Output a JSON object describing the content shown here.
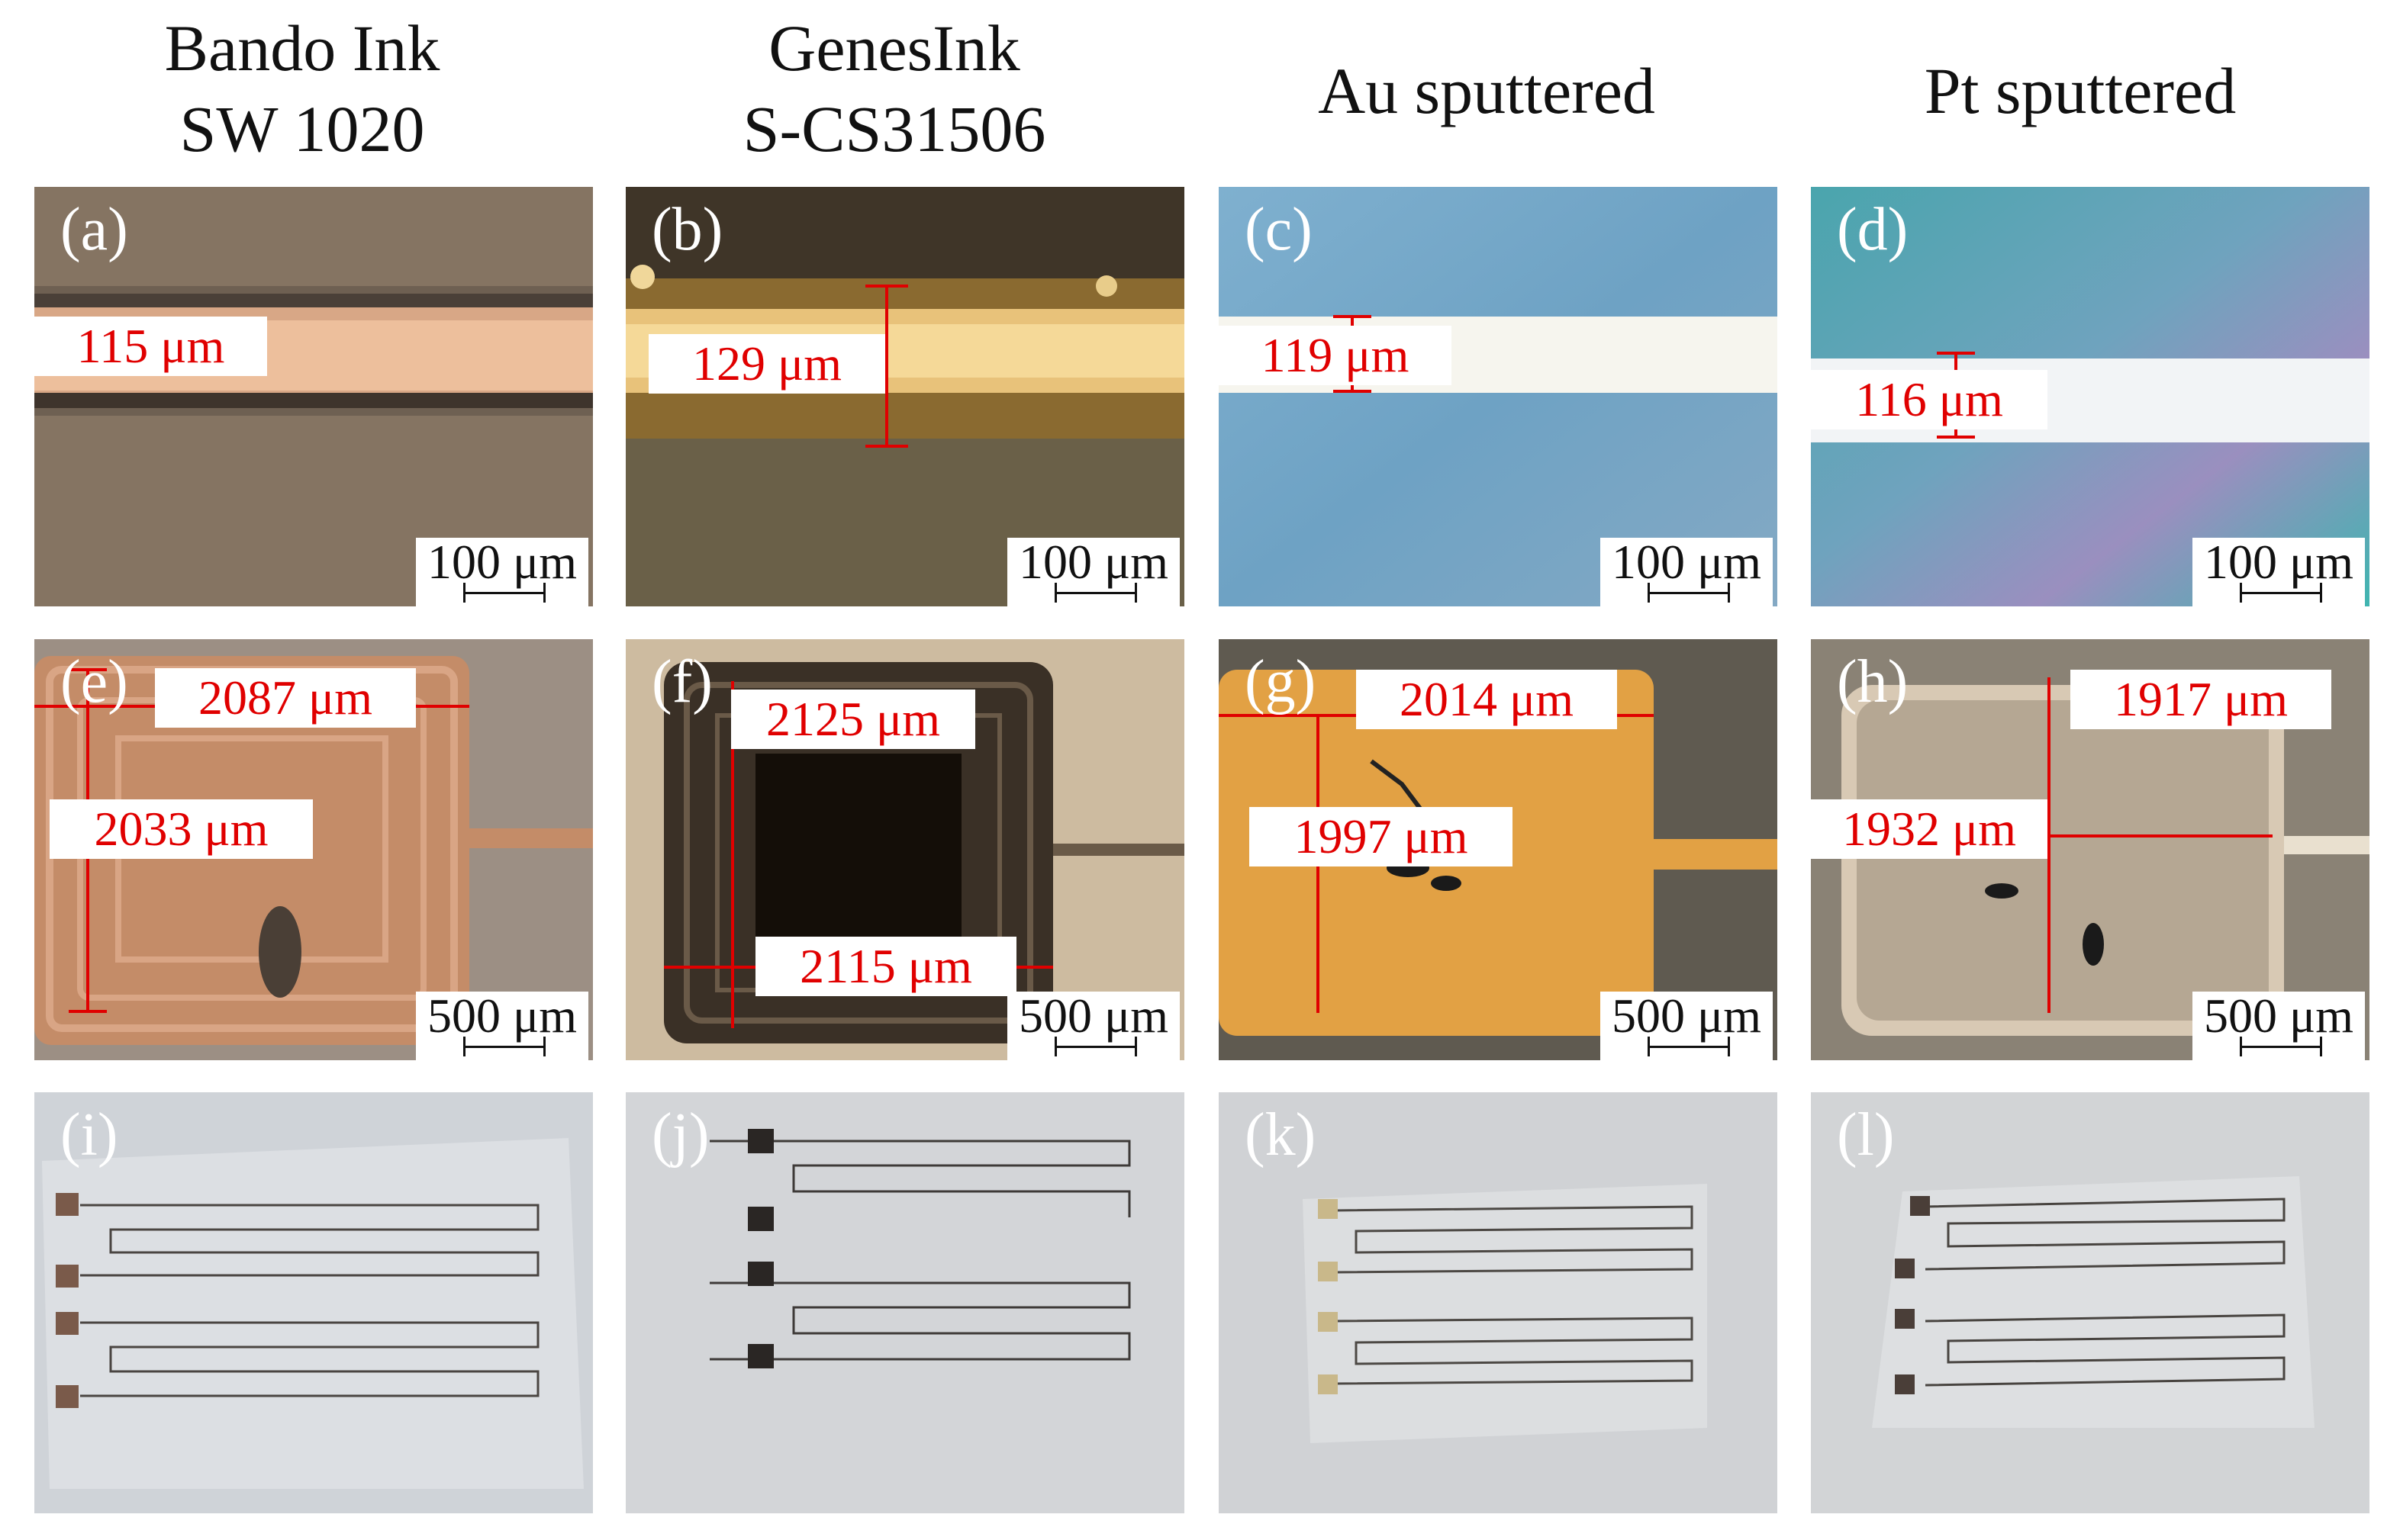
{
  "columns": [
    {
      "title_line1": "Bando Ink",
      "title_line2": "SW 1020"
    },
    {
      "title_line1": "GenesInk",
      "title_line2": "S-CS31506"
    },
    {
      "title_line1": "Au sputtered",
      "title_line2": ""
    },
    {
      "title_line1": "Pt sputtered",
      "title_line2": ""
    }
  ],
  "row1": {
    "labels": [
      "(a)",
      "(b)",
      "(c)",
      "(d)"
    ],
    "measurements": [
      "115 μm",
      "129 μm",
      "119 μm",
      "116 μm"
    ],
    "scale_bar": "100 μm"
  },
  "row2": {
    "labels": [
      "(e)",
      "(f)",
      "(g)",
      "(h)"
    ],
    "width_measurements": [
      "2087 μm",
      "2125 μm",
      "2014 μm",
      "1917 μm"
    ],
    "height_measurements": [
      "2033 μm",
      "2115 μm",
      "1997 μm",
      "1932 μm"
    ],
    "scale_bar": "500 μm"
  },
  "row3": {
    "labels": [
      "(i)",
      "(j)",
      "(k)",
      "(l)"
    ]
  },
  "colors": {
    "measurement_red": "#e00000",
    "bando_line": "#e8b48e",
    "genesink_line": "#d9a84a",
    "au_background": "#6fa4c6",
    "pt_background": "#4fb0b4",
    "au_pad": "#e0a040"
  }
}
